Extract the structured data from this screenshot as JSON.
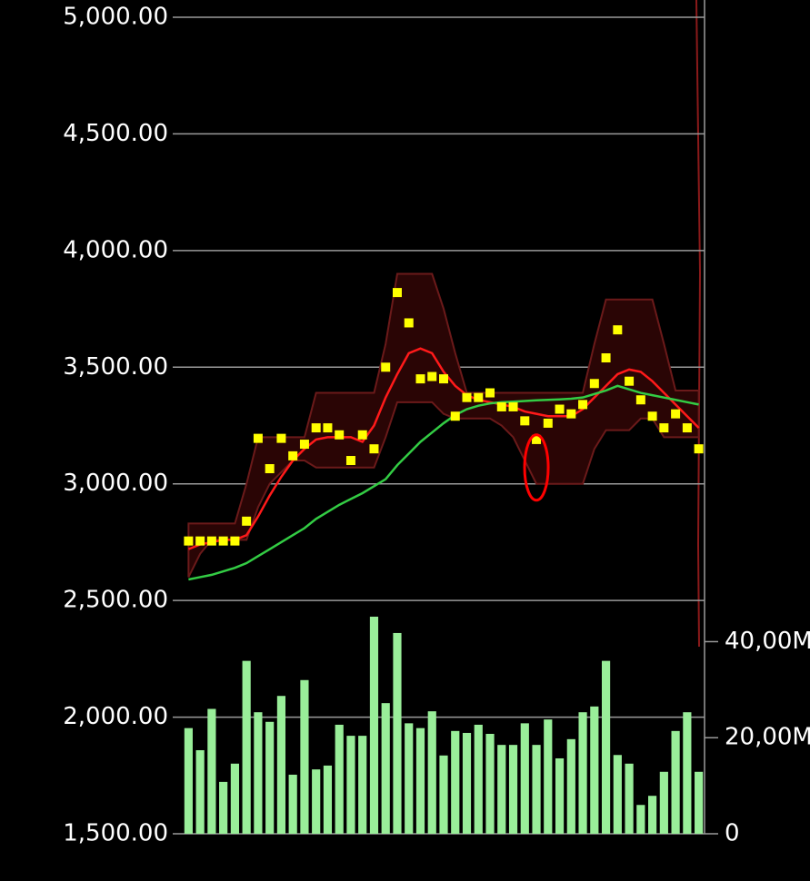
{
  "chart_data": {
    "type": "stock",
    "ylim": [
      1500,
      5000
    ],
    "yticks": [
      {
        "value": 1500,
        "label": "1,500.00"
      },
      {
        "value": 2000,
        "label": "2,000.00"
      },
      {
        "value": 2500,
        "label": "2,500.00"
      },
      {
        "value": 3000,
        "label": "3,000.00"
      },
      {
        "value": 3500,
        "label": "3,500.00"
      },
      {
        "value": 4000,
        "label": "4,000.00"
      },
      {
        "value": 4500,
        "label": "4,500.00"
      },
      {
        "value": 5000,
        "label": "5,000.00"
      }
    ],
    "y2lim": [
      0,
      170000000
    ],
    "y2ticks": [
      0,
      {
        "value": 20000000,
        "label": "20,00M"
      },
      {
        "value": 40000000,
        "label": "40,00M"
      }
    ],
    "grid": true,
    "price": {
      "color": "#ffff00",
      "values": [
        2755,
        2755,
        2755,
        2755,
        2755,
        2840,
        3195,
        3065,
        3195,
        3120,
        3170,
        3240,
        3240,
        3210,
        3100,
        3210,
        3150,
        3500,
        3820,
        3690,
        3450,
        3460,
        3450,
        3290,
        3370,
        3370,
        3390,
        3330,
        3330,
        3270,
        3190,
        3260,
        3320,
        3300,
        3340,
        3430,
        3540,
        3660,
        3440,
        3360,
        3290,
        3240,
        3300,
        3240,
        3150
      ]
    },
    "band_upper": [
      2830,
      2830,
      2830,
      2830,
      2830,
      3000,
      3200,
      3200,
      3200,
      3200,
      3200,
      3390,
      3390,
      3390,
      3390,
      3390,
      3390,
      3600,
      3900,
      3900,
      3900,
      3900,
      3750,
      3560,
      3390,
      3390,
      3390,
      3390,
      3390,
      3390,
      3390,
      3390,
      3390,
      3390,
      3390,
      3600,
      3790,
      3790,
      3790,
      3790,
      3790,
      3600,
      3400,
      3400,
      3400
    ],
    "band_lower": [
      2600,
      2700,
      2760,
      2760,
      2760,
      2760,
      2900,
      3000,
      3050,
      3100,
      3100,
      3070,
      3070,
      3070,
      3070,
      3070,
      3070,
      3200,
      3350,
      3350,
      3350,
      3350,
      3300,
      3280,
      3280,
      3280,
      3280,
      3250,
      3200,
      3100,
      3000,
      3000,
      3000,
      3000,
      3000,
      3150,
      3230,
      3230,
      3230,
      3280,
      3280,
      3200,
      3200,
      3200,
      3200
    ],
    "series": [
      {
        "color": "#ff1a1a",
        "values": [
          2720,
          2740,
          2750,
          2760,
          2760,
          2780,
          2860,
          2950,
          3030,
          3100,
          3150,
          3190,
          3200,
          3200,
          3200,
          3180,
          3250,
          3370,
          3470,
          3560,
          3580,
          3560,
          3480,
          3420,
          3380,
          3360,
          3350,
          3340,
          3330,
          3310,
          3300,
          3290,
          3290,
          3290,
          3320,
          3370,
          3420,
          3470,
          3490,
          3480,
          3440,
          3390,
          3340,
          3290,
          3240
        ]
      },
      {
        "color": "#33cc44",
        "values": [
          2590,
          2600,
          2610,
          2625,
          2640,
          2660,
          2690,
          2720,
          2750,
          2780,
          2810,
          2850,
          2880,
          2910,
          2935,
          2960,
          2990,
          3020,
          3080,
          3130,
          3180,
          3220,
          3260,
          3295,
          3320,
          3335,
          3345,
          3350,
          3352,
          3355,
          3358,
          3360,
          3362,
          3365,
          3370,
          3385,
          3400,
          3420,
          3405,
          3390,
          3380,
          3370,
          3360,
          3350,
          3340
        ]
      }
    ],
    "volume": {
      "axis": "y2",
      "color": "#99ee99",
      "values": [
        22000000,
        17400000,
        26000000,
        10800000,
        14600000,
        36000000,
        25300000,
        23300000,
        28700000,
        12300000,
        32000000,
        13400000,
        14200000,
        22700000,
        20400000,
        20400000,
        45200000,
        27200000,
        41800000,
        23000000,
        22000000,
        25500000,
        16300000,
        21400000,
        21000000,
        22700000,
        20800000,
        18500000,
        18500000,
        23000000,
        18500000,
        23800000,
        15700000,
        19700000,
        25300000,
        26500000,
        36000000,
        16400000,
        14600000,
        6000000,
        7900000,
        12900000,
        21400000,
        25300000,
        12900000
      ]
    }
  }
}
